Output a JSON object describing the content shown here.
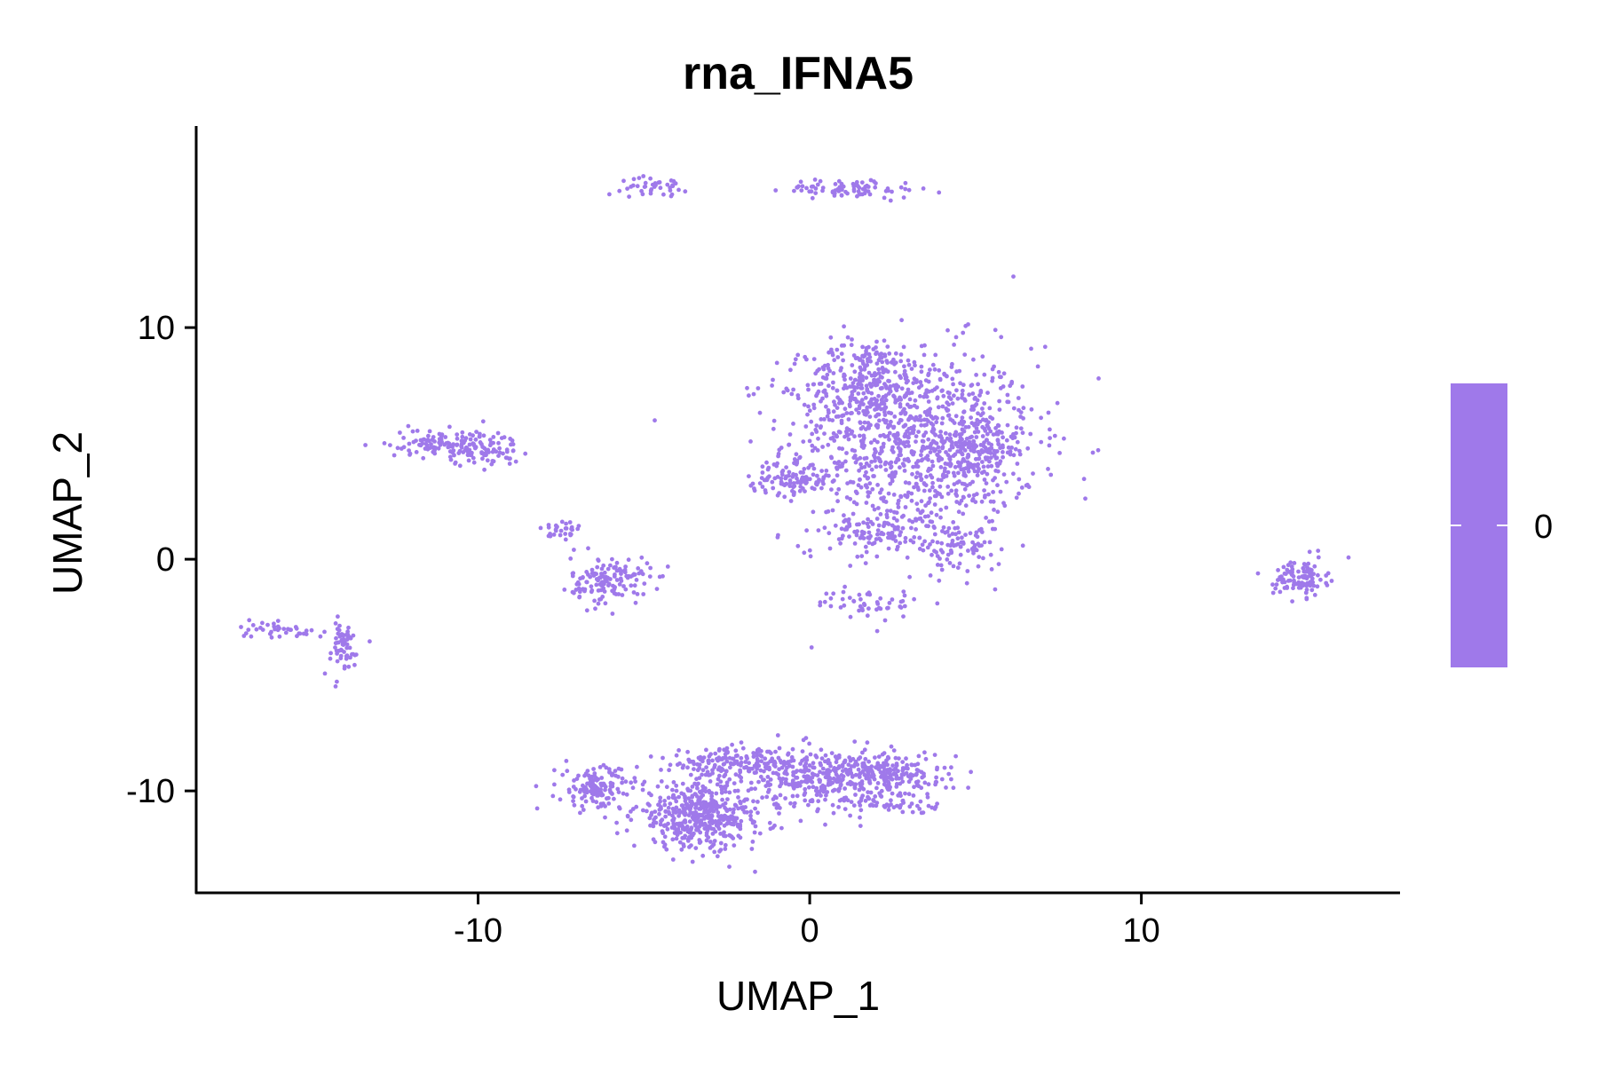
{
  "chart_data": {
    "type": "scatter",
    "title": "rna_IFNA5",
    "xlabel": "UMAP_1",
    "ylabel": "UMAP_2",
    "xlim": [
      -18.5,
      17.8
    ],
    "ylim": [
      -14.4,
      18.7
    ],
    "x_ticks": [
      -10,
      0,
      10
    ],
    "x_tick_labels": [
      "-10",
      "0",
      "10"
    ],
    "y_ticks": [
      -10,
      0,
      10
    ],
    "y_tick_labels": [
      "-10",
      "0",
      "10"
    ],
    "grid": false,
    "point_color": "#9f79ea",
    "legend": {
      "type": "colorbar",
      "placement": "right",
      "color": "#9f79ea",
      "labels": [
        "0"
      ]
    },
    "clusters": [
      {
        "cx": 3.0,
        "cy": 5.0,
        "sx": 1.9,
        "sy": 2.1,
        "n": 900
      },
      {
        "cx": 1.7,
        "cy": 7.5,
        "sx": 0.9,
        "sy": 1.0,
        "n": 250
      },
      {
        "cx": 5.0,
        "cy": 4.8,
        "sx": 0.7,
        "sy": 1.0,
        "n": 200
      },
      {
        "cx": -0.5,
        "cy": 3.4,
        "sx": 0.6,
        "sy": 0.3,
        "n": 90
      },
      {
        "cx": 2.2,
        "cy": 1.2,
        "sx": 0.8,
        "sy": 0.5,
        "n": 110
      },
      {
        "cx": 4.6,
        "cy": 0.4,
        "sx": 0.6,
        "sy": 0.5,
        "n": 70
      },
      {
        "cx": 1.8,
        "cy": -1.9,
        "sx": 0.8,
        "sy": 0.3,
        "n": 50
      },
      {
        "cx": -11.3,
        "cy": 5.0,
        "sx": 0.7,
        "sy": 0.3,
        "n": 90
      },
      {
        "cx": -9.9,
        "cy": 4.8,
        "sx": 0.6,
        "sy": 0.4,
        "n": 90
      },
      {
        "cx": -7.5,
        "cy": 1.2,
        "sx": 0.3,
        "sy": 0.3,
        "n": 30
      },
      {
        "cx": -6.0,
        "cy": -0.9,
        "sx": 0.6,
        "sy": 0.5,
        "n": 140
      },
      {
        "cx": -16.0,
        "cy": -3.0,
        "sx": 0.7,
        "sy": 0.2,
        "n": 40
      },
      {
        "cx": -14.1,
        "cy": -3.9,
        "sx": 0.3,
        "sy": 0.6,
        "n": 60
      },
      {
        "cx": -4.7,
        "cy": 16.1,
        "sx": 0.5,
        "sy": 0.2,
        "n": 40
      },
      {
        "cx": 1.3,
        "cy": 16.0,
        "sx": 1.0,
        "sy": 0.2,
        "n": 80
      },
      {
        "cx": 14.8,
        "cy": -0.8,
        "sx": 0.4,
        "sy": 0.4,
        "n": 110
      },
      {
        "cx": -6.4,
        "cy": -9.9,
        "sx": 0.6,
        "sy": 0.5,
        "n": 140
      },
      {
        "cx": -3.3,
        "cy": -11.1,
        "sx": 1.0,
        "sy": 0.7,
        "n": 450
      },
      {
        "cx": -2.4,
        "cy": -8.8,
        "sx": 0.9,
        "sy": 0.3,
        "n": 140
      },
      {
        "cx": 0.2,
        "cy": -9.4,
        "sx": 1.3,
        "sy": 0.6,
        "n": 350
      },
      {
        "cx": 2.5,
        "cy": -9.3,
        "sx": 0.9,
        "sy": 0.5,
        "n": 170
      },
      {
        "cx": 2.5,
        "cy": -10.6,
        "sx": 0.7,
        "sy": 0.2,
        "n": 40
      }
    ]
  }
}
